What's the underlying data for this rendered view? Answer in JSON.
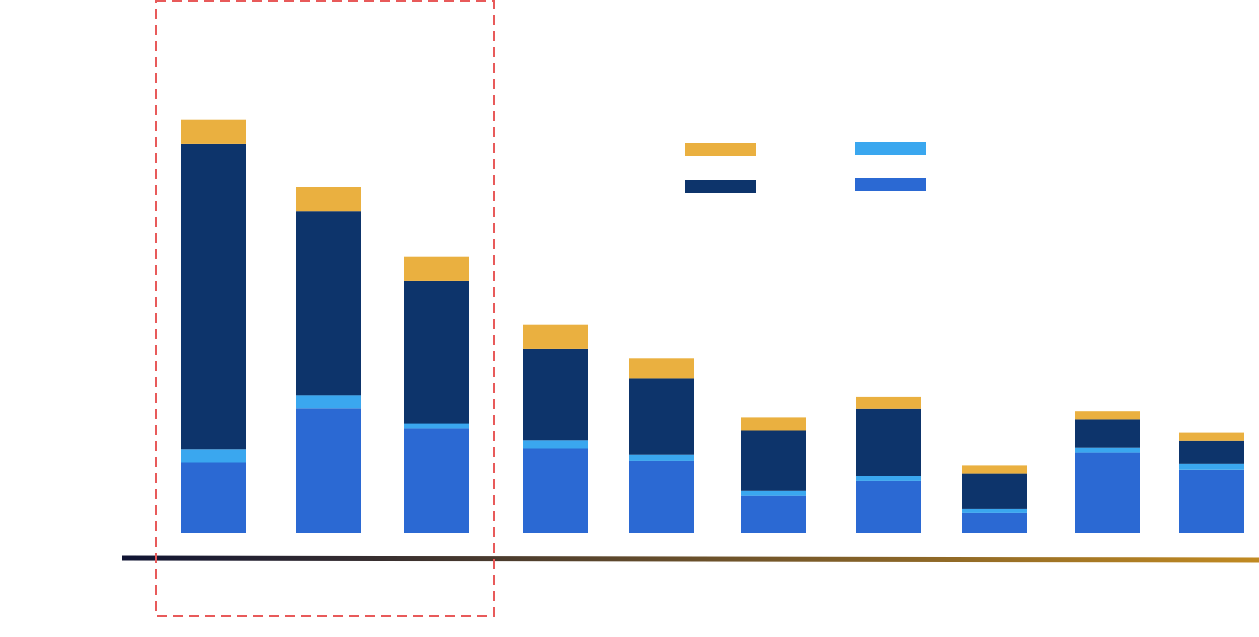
{
  "chart_data": {
    "type": "bar",
    "stacked": true,
    "title": "",
    "xlabel": "",
    "ylabel": "",
    "categories": [
      "",
      "",
      "",
      "",
      "",
      "",
      "",
      "",
      "",
      ""
    ],
    "ylim": [
      0,
      100
    ],
    "grid": false,
    "legend_position": "top-center",
    "series": [
      {
        "color": "#2b69d3",
        "values": [
          17.2,
          30.4,
          25.5,
          20.6,
          17.6,
          9.1,
          12.7,
          4.9,
          19.6,
          15.4
        ]
      },
      {
        "color": "#3aa7ef",
        "values": [
          3.2,
          3.2,
          1.2,
          2.0,
          1.5,
          1.2,
          1.2,
          1.0,
          1.2,
          1.5
        ]
      },
      {
        "color": "#0d346b",
        "values": [
          74.5,
          44.9,
          34.8,
          22.3,
          18.6,
          14.7,
          16.4,
          8.6,
          6.9,
          5.6
        ]
      },
      {
        "color": "#eab040",
        "values": [
          5.9,
          5.9,
          5.9,
          5.9,
          4.9,
          3.2,
          2.9,
          2.0,
          2.0,
          2.0
        ]
      }
    ],
    "annotations": [
      {
        "type": "highlight-box",
        "style": "dashed",
        "color": "#e85a5a",
        "covers_categories": [
          0,
          1,
          2
        ]
      }
    ]
  },
  "legend": {
    "items": [
      {
        "color": "#eab040"
      },
      {
        "color": "#3aa7ef"
      },
      {
        "color": "#0d346b"
      },
      {
        "color": "#2b69d3"
      }
    ]
  },
  "axes": {
    "y_gradient": [
      "#c18a22",
      "#101433"
    ],
    "x_gradient": [
      "#101433",
      "#c18a22"
    ]
  }
}
